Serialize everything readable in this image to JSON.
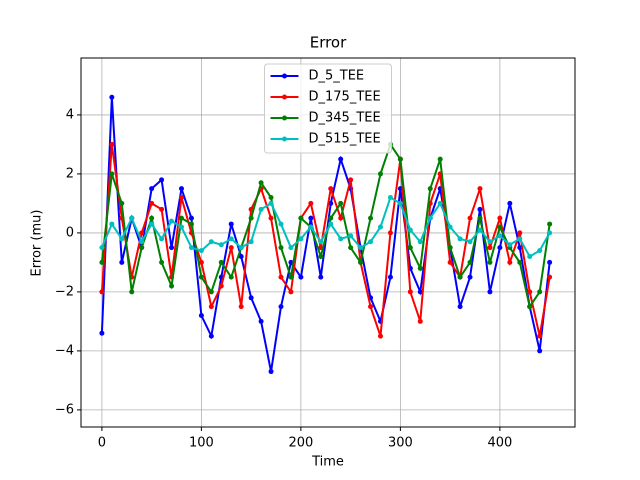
{
  "chart_data": {
    "type": "line",
    "title": "Error",
    "xlabel": "Time",
    "ylabel": "Error (mu)",
    "x": [
      0,
      10,
      20,
      30,
      40,
      50,
      60,
      70,
      80,
      90,
      100,
      110,
      120,
      130,
      140,
      150,
      160,
      170,
      180,
      190,
      200,
      210,
      220,
      230,
      240,
      250,
      260,
      270,
      280,
      290,
      300,
      310,
      320,
      330,
      340,
      350,
      360,
      370,
      380,
      390,
      400,
      410,
      420,
      430,
      440,
      450
    ],
    "series": [
      {
        "name": "D_5_TEE",
        "color": "#0000ff",
        "values": [
          -3.4,
          4.6,
          -1,
          0.5,
          -0.5,
          1.5,
          1.8,
          -0.5,
          1.5,
          0.5,
          -2.8,
          -3.5,
          -1.5,
          0.3,
          -0.8,
          -2.2,
          -3,
          -4.7,
          -2.5,
          -1,
          -1.5,
          0.5,
          -1.5,
          1,
          2.5,
          1.5,
          -0.5,
          -2.2,
          -3,
          -1.5,
          1.5,
          -1.2,
          -2,
          0.5,
          1.5,
          -0.5,
          -2.5,
          -1.5,
          0.8,
          -2,
          -0.5,
          1,
          -0.5,
          -2.5,
          -4,
          -1
        ]
      },
      {
        "name": "D_175_TEE",
        "color": "#ff0000",
        "values": [
          -2,
          3,
          0.5,
          -1.5,
          0,
          1,
          0.8,
          -1.5,
          1.2,
          0,
          -1,
          -2.5,
          -1.8,
          -0.5,
          -2.5,
          0.8,
          1.5,
          0.5,
          -1.5,
          -2,
          0.5,
          1,
          -0.5,
          1.5,
          0.5,
          1.8,
          -1,
          -2.5,
          -3.5,
          0,
          2.5,
          -2,
          -3,
          1,
          2,
          -1,
          -1.5,
          0.5,
          1.5,
          -0.5,
          0.5,
          -1,
          0,
          -2,
          -3.5,
          -1.5
        ]
      },
      {
        "name": "D_345_TEE",
        "color": "#008000",
        "values": [
          -1,
          2,
          1,
          -2,
          -0.5,
          0.5,
          -1,
          -1.8,
          0.5,
          0.3,
          -1.5,
          -2,
          -1,
          -1.5,
          -0.5,
          0.5,
          1.7,
          1.2,
          -0.5,
          -1.5,
          0.5,
          0.2,
          -0.8,
          0.5,
          1,
          -0.5,
          -1,
          0.5,
          2,
          3,
          2.5,
          -0.5,
          -1.2,
          1.5,
          2.5,
          -0.5,
          -1.5,
          -1,
          0.5,
          -1,
          0.2,
          -0.5,
          -1,
          -2.5,
          -2,
          0.3
        ]
      },
      {
        "name": "D_515_TEE",
        "color": "#00bfbf",
        "values": [
          -0.5,
          0.3,
          -0.2,
          0.5,
          -0.3,
          0.3,
          -0.2,
          0.4,
          0.2,
          -0.5,
          -0.6,
          -0.3,
          -0.4,
          -0.2,
          -0.5,
          -0.3,
          0.8,
          1,
          0.3,
          -0.5,
          -0.2,
          0.2,
          -0.3,
          0.3,
          -0.2,
          -0.1,
          -0.5,
          -0.3,
          0.2,
          1.2,
          1,
          0.1,
          -0.3,
          0.5,
          1,
          0.2,
          -0.2,
          -0.3,
          0.1,
          -0.3,
          -0.1,
          -0.4,
          -0.2,
          -0.8,
          -0.6,
          0
        ]
      }
    ],
    "xlim": [
      -21,
      475.5
    ],
    "ylim": [
      -6.58,
      5.93
    ],
    "xticks": [
      0,
      100,
      200,
      300,
      400
    ],
    "yticks": [
      {
        "value": -6,
        "label": "−6"
      },
      {
        "value": -4,
        "label": "−4"
      },
      {
        "value": -2,
        "label": "−2"
      },
      0,
      2,
      4
    ],
    "grid": true,
    "legend": "upper center"
  }
}
